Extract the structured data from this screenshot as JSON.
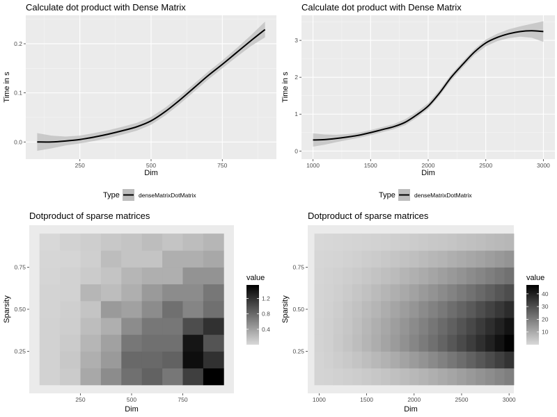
{
  "chart_data": [
    {
      "type": "line",
      "title": "Calculate dot product with Dense Matrix",
      "xlabel": "Dim",
      "ylabel": "Time in s",
      "xlim": [
        60,
        940
      ],
      "ylim": [
        -0.035,
        0.258
      ],
      "xticks": [
        250,
        500,
        750
      ],
      "yticks": [
        0.0,
        0.1,
        0.2
      ],
      "ytick_labels": [
        "0.0",
        "0.1",
        "0.2"
      ],
      "grid": true,
      "background": "#ebebeb",
      "series": [
        {
          "name": "denseMatrixDotMatrix",
          "color": "#000000",
          "x": [
            100,
            150,
            200,
            250,
            300,
            350,
            400,
            450,
            500,
            550,
            600,
            650,
            700,
            750,
            800,
            850,
            900
          ],
          "y": [
            0.0,
            0.0,
            0.002,
            0.005,
            0.01,
            0.016,
            0.023,
            0.031,
            0.043,
            0.062,
            0.085,
            0.11,
            0.135,
            0.158,
            0.182,
            0.206,
            0.229
          ],
          "band": [
            0.018,
            0.013,
            0.009,
            0.008,
            0.008,
            0.008,
            0.008,
            0.008,
            0.008,
            0.008,
            0.008,
            0.008,
            0.008,
            0.008,
            0.009,
            0.011,
            0.016
          ]
        }
      ]
    },
    {
      "type": "line",
      "title": "Calculate dot product with Dense Matrix",
      "xlabel": "Dim",
      "ylabel": "Time in s",
      "xlim": [
        900,
        3100
      ],
      "ylim": [
        -0.22,
        3.68
      ],
      "xticks": [
        1000,
        1500,
        2000,
        2500,
        3000
      ],
      "yticks": [
        0,
        1,
        2,
        3
      ],
      "ytick_labels": [
        "0",
        "1",
        "2",
        "3"
      ],
      "grid": true,
      "background": "#ebebeb",
      "series": [
        {
          "name": "denseMatrixDotMatrix",
          "color": "#000000",
          "x": [
            1000,
            1100,
            1200,
            1300,
            1400,
            1500,
            1600,
            1700,
            1800,
            1900,
            2000,
            2100,
            2200,
            2300,
            2400,
            2500,
            2600,
            2700,
            2800,
            2900,
            3000
          ],
          "y": [
            0.3,
            0.31,
            0.34,
            0.38,
            0.43,
            0.5,
            0.58,
            0.66,
            0.78,
            0.98,
            1.22,
            1.58,
            2.0,
            2.35,
            2.68,
            2.93,
            3.08,
            3.18,
            3.24,
            3.26,
            3.24
          ],
          "band": [
            0.18,
            0.14,
            0.1,
            0.08,
            0.07,
            0.07,
            0.07,
            0.07,
            0.08,
            0.08,
            0.08,
            0.08,
            0.08,
            0.08,
            0.08,
            0.09,
            0.1,
            0.12,
            0.14,
            0.19,
            0.28
          ]
        }
      ]
    },
    {
      "type": "heatmap",
      "title": "Dotproduct of sparse matrices",
      "xlabel": "Dim",
      "ylabel": "Sparsity",
      "xlim": [
        0,
        1000
      ],
      "ylim": [
        0,
        1
      ],
      "xticks": [
        250,
        500,
        750
      ],
      "yticks": [
        0.25,
        0.5,
        0.75
      ],
      "ytick_labels": [
        "0.25",
        "0.50",
        "0.75"
      ],
      "x": [
        100,
        200,
        300,
        400,
        500,
        600,
        700,
        800,
        900
      ],
      "y": [
        0.1,
        0.2,
        0.3,
        0.4,
        0.5,
        0.6,
        0.7,
        0.8,
        0.9
      ],
      "color_scale": {
        "low": "#d9d9d9",
        "high": "#000000",
        "min": 0.0,
        "max": 1.55
      },
      "legend_title": "value",
      "legend_ticks": [
        0.4,
        0.8,
        1.2
      ],
      "legend_tick_labels": [
        "0.4",
        "0.8",
        "1.2"
      ],
      "values": [
        [
          0.05,
          0.1,
          0.35,
          0.55,
          0.75,
          0.85,
          0.7,
          1.1,
          1.55
        ],
        [
          0.05,
          0.12,
          0.3,
          0.45,
          0.8,
          0.8,
          0.85,
          1.45,
          1.2
        ],
        [
          0.05,
          0.1,
          0.25,
          0.4,
          0.7,
          0.75,
          0.75,
          1.4,
          0.95
        ],
        [
          0.05,
          0.08,
          0.2,
          0.3,
          0.55,
          0.7,
          0.7,
          1.0,
          1.2
        ],
        [
          0.04,
          0.07,
          0.15,
          0.45,
          0.4,
          0.55,
          0.75,
          0.6,
          0.75
        ],
        [
          0.04,
          0.05,
          0.25,
          0.2,
          0.3,
          0.45,
          0.55,
          0.55,
          0.7
        ],
        [
          0.03,
          0.05,
          0.1,
          0.15,
          0.25,
          0.3,
          0.3,
          0.5,
          0.5
        ],
        [
          0.02,
          0.03,
          0.07,
          0.2,
          0.15,
          0.15,
          0.3,
          0.3,
          0.35
        ],
        [
          0.01,
          0.05,
          0.08,
          0.12,
          0.15,
          0.2,
          0.15,
          0.2,
          0.25
        ]
      ]
    },
    {
      "type": "heatmap",
      "title": "Dotproduct of sparse matrices",
      "xlabel": "Dim",
      "ylabel": "Sparsity",
      "xlim": [
        880,
        3050
      ],
      "ylim": [
        0,
        1
      ],
      "xticks": [
        1000,
        1500,
        2000,
        2500,
        3000
      ],
      "yticks": [
        0.25,
        0.5,
        0.75
      ],
      "ytick_labels": [
        "0.25",
        "0.50",
        "0.75"
      ],
      "x": [
        1000,
        1100,
        1200,
        1300,
        1400,
        1500,
        1600,
        1700,
        1800,
        1900,
        2000,
        2100,
        2200,
        2300,
        2400,
        2500,
        2600,
        2700,
        2800,
        2900,
        3000
      ],
      "y": [
        0.1,
        0.2,
        0.3,
        0.4,
        0.5,
        0.6,
        0.7,
        0.8,
        0.9
      ],
      "color_scale": {
        "low": "#d9d9d9",
        "high": "#000000",
        "min": 0.0,
        "max": 47.0
      },
      "legend_title": "value",
      "legend_ticks": [
        10,
        20,
        30,
        40
      ],
      "legend_tick_labels": [
        "10",
        "20",
        "30",
        "40"
      ],
      "values": [
        [
          1.0,
          1.3,
          1.7,
          2.2,
          2.7,
          3.3,
          3.9,
          4.6,
          5.4,
          6.2,
          7.1,
          8.1,
          9.1,
          10.2,
          11.3,
          12.5,
          13.8,
          15.1,
          16.5,
          17.9,
          19.4
        ],
        [
          1.1,
          1.7,
          2.6,
          3.5,
          4.6,
          5.8,
          7.1,
          8.5,
          10.0,
          11.6,
          13.4,
          15.2,
          17.1,
          19.1,
          21.2,
          23.4,
          25.7,
          28.1,
          30.6,
          33.2,
          35.9
        ],
        [
          1.2,
          2.0,
          3.2,
          4.5,
          6.0,
          7.7,
          9.5,
          11.4,
          13.4,
          15.6,
          17.9,
          20.3,
          22.8,
          25.4,
          28.1,
          30.9,
          33.8,
          36.8,
          39.9,
          43.1,
          46.4
        ],
        [
          1.2,
          2.0,
          3.0,
          4.2,
          5.7,
          7.3,
          9.0,
          10.8,
          12.7,
          14.8,
          16.9,
          19.1,
          21.4,
          23.8,
          26.3,
          28.9,
          31.5,
          34.2,
          37.0,
          39.9,
          42.8
        ],
        [
          1.1,
          1.8,
          2.7,
          3.8,
          5.0,
          6.4,
          7.9,
          9.5,
          11.2,
          13.0,
          14.8,
          16.8,
          18.8,
          20.9,
          23.1,
          25.3,
          27.6,
          30.0,
          32.4,
          34.9,
          37.4
        ],
        [
          1.0,
          1.5,
          2.2,
          3.1,
          4.1,
          5.2,
          6.4,
          7.7,
          9.1,
          10.5,
          12.0,
          13.6,
          15.2,
          16.9,
          18.7,
          20.5,
          22.4,
          24.3,
          26.3,
          28.3,
          30.4
        ],
        [
          0.8,
          1.2,
          1.7,
          2.3,
          3.0,
          3.8,
          4.7,
          5.6,
          6.6,
          7.7,
          8.8,
          10.0,
          11.2,
          12.5,
          13.8,
          15.2,
          16.6,
          18.0,
          19.5,
          21.0,
          22.6
        ],
        [
          0.6,
          0.8,
          1.1,
          1.5,
          2.0,
          2.5,
          3.0,
          3.6,
          4.3,
          5.0,
          5.7,
          6.5,
          7.3,
          8.1,
          9.0,
          9.9,
          10.8,
          11.8,
          12.8,
          13.8,
          14.9
        ],
        [
          0.3,
          0.4,
          0.6,
          0.8,
          1.0,
          1.2,
          1.5,
          1.8,
          2.1,
          2.4,
          2.8,
          3.2,
          3.6,
          4.0,
          4.4,
          4.9,
          5.4,
          5.9,
          6.4,
          6.9,
          7.4
        ]
      ]
    }
  ],
  "legend": {
    "title": "Type",
    "label": "denseMatrixDotMatrix"
  }
}
